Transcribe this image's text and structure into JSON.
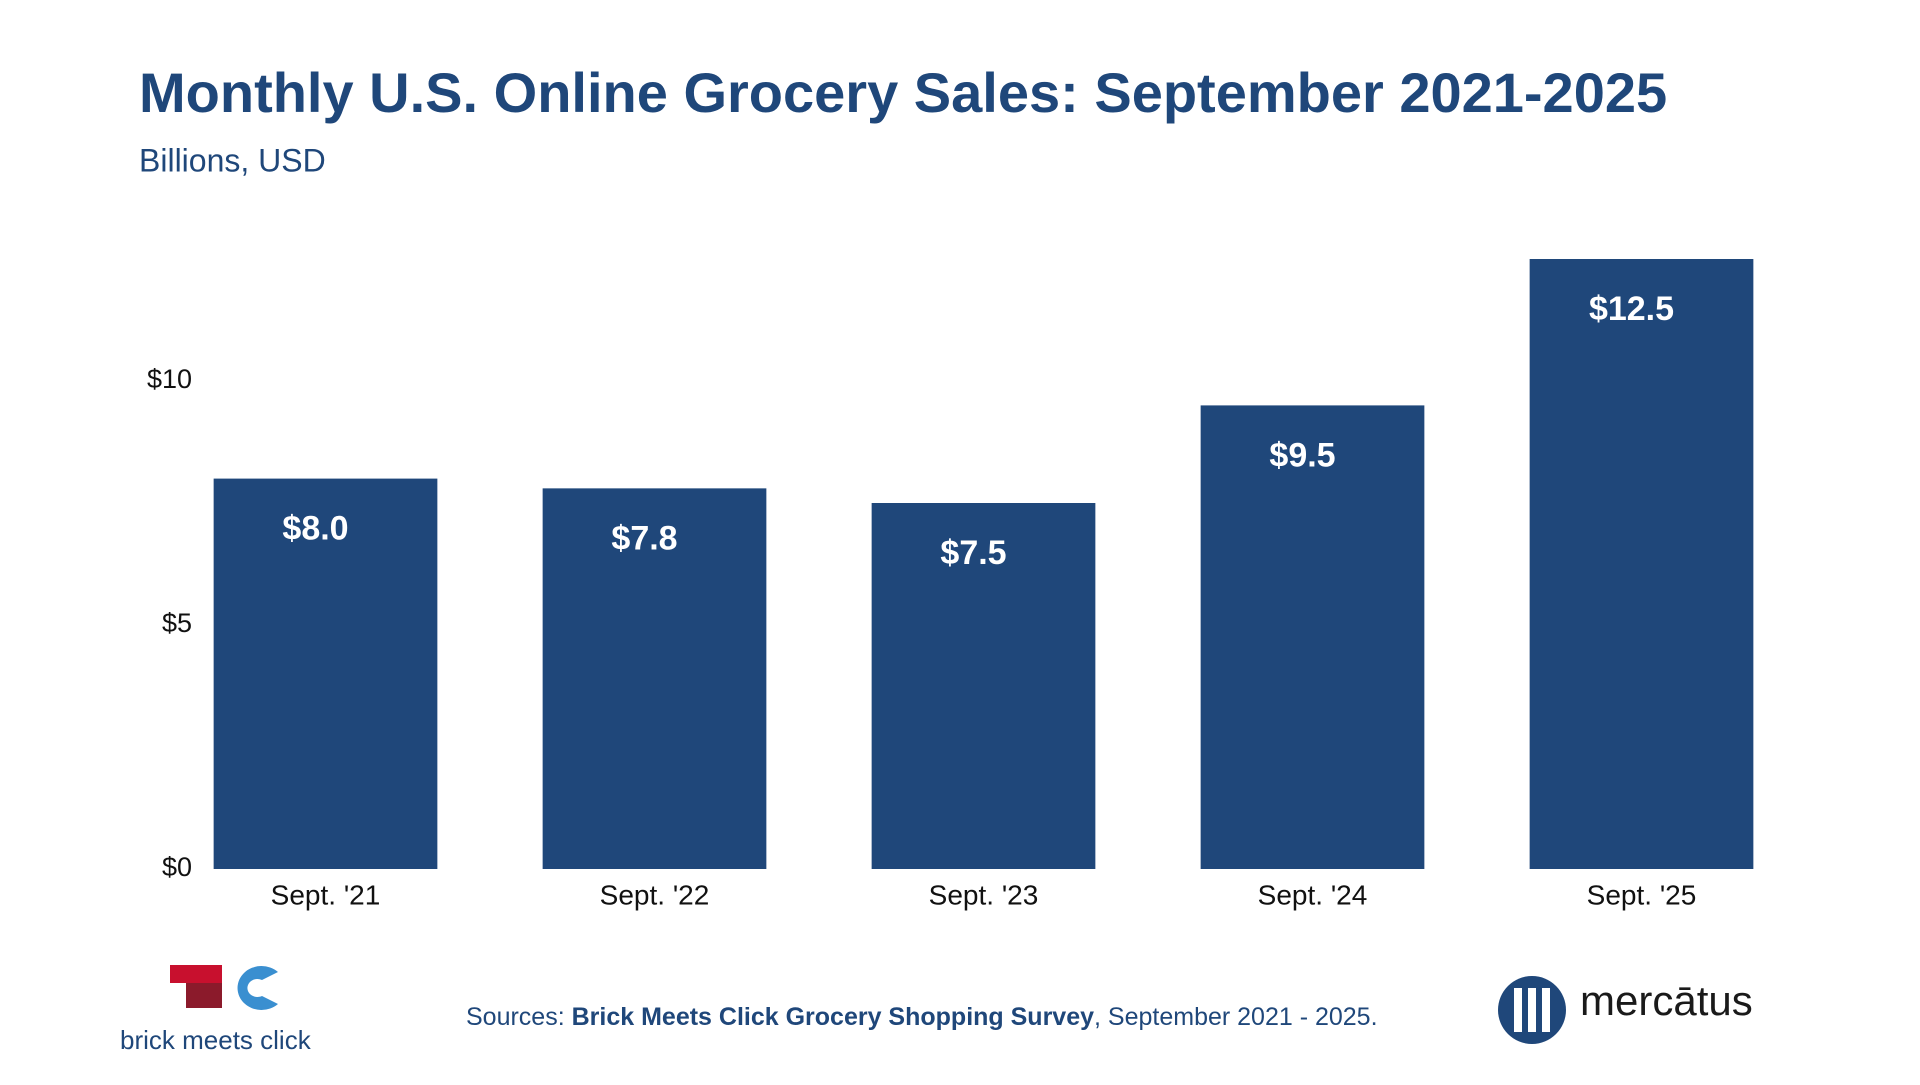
{
  "chart_data": {
    "type": "bar",
    "title": "Monthly U.S. Online Grocery Sales: September 2021-2025",
    "subtitle": "Billions, USD",
    "categories": [
      "Sept. '21",
      "Sept. '22",
      "Sept. '23",
      "Sept. '24",
      "Sept. '25"
    ],
    "values": [
      8.0,
      7.8,
      7.5,
      9.5,
      12.5
    ],
    "value_labels": [
      "$8.0",
      "$7.8",
      "$7.5",
      "$9.5",
      "$12.5"
    ],
    "color": "#1f477a",
    "ylim": [
      0,
      12.5
    ],
    "yticks": [
      {
        "value": 0,
        "label": "$0"
      },
      {
        "value": 5,
        "label": "$5"
      },
      {
        "value": 10,
        "label": "$10"
      }
    ],
    "grid": false
  },
  "footer": {
    "prefix": "Sources: ",
    "source": "Brick Meets Click Grocery Shopping Survey",
    "suffix": ", September 2021 - 2025."
  },
  "logos": {
    "left": "brick meets click",
    "right": "mercātus"
  }
}
